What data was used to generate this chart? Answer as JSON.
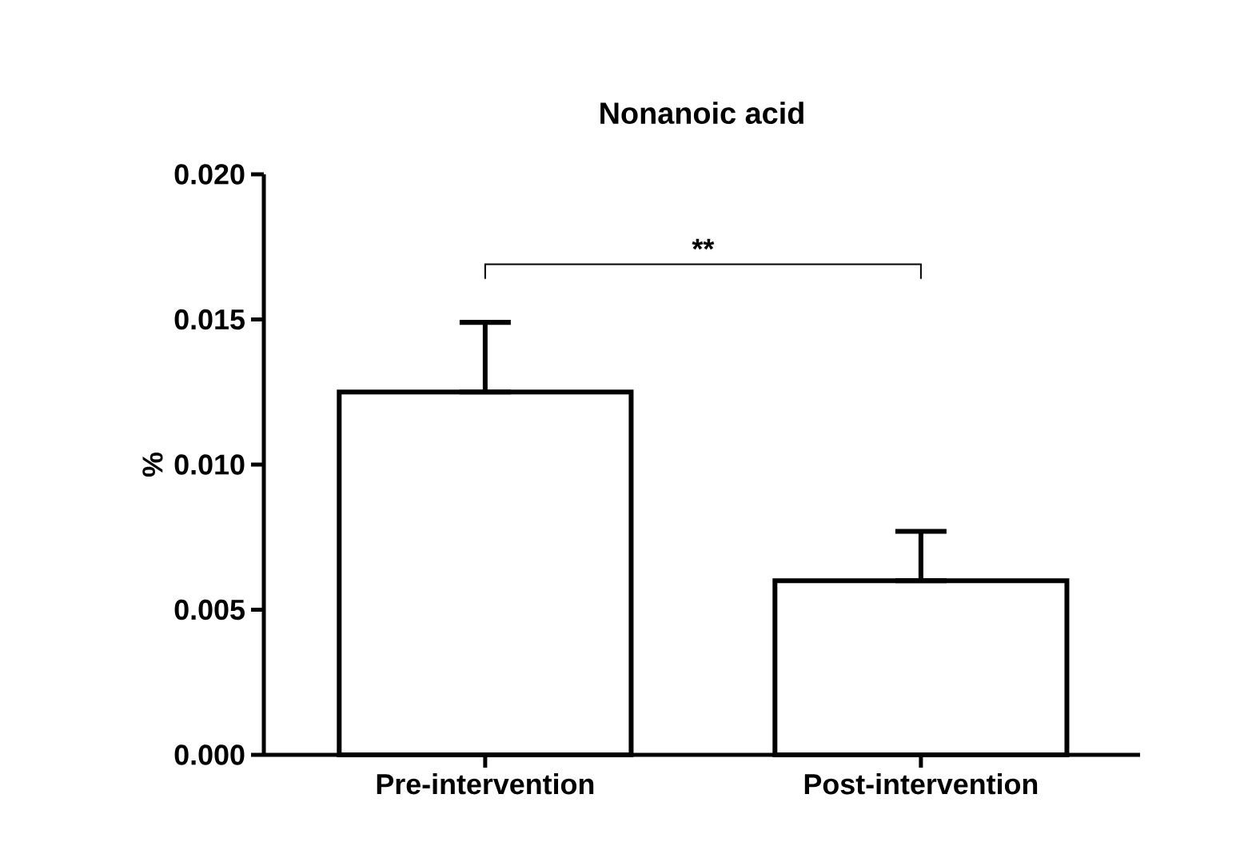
{
  "chart_data": {
    "type": "bar",
    "title": "Nonanoic acid",
    "ylabel": "%",
    "categories": [
      "Pre-intervention",
      "Post-intervention"
    ],
    "values": [
      0.0125,
      0.006
    ],
    "errors": [
      [
        0.0125,
        0.0149
      ],
      [
        0.006,
        0.0077
      ]
    ],
    "color": "#ffffff",
    "ylim": [
      0,
      0.02
    ],
    "yticks": [
      {
        "value": 0,
        "label": "0.000"
      },
      {
        "value": 0.005,
        "label": "0.005"
      },
      {
        "value": 0.01,
        "label": "0.010"
      },
      {
        "value": 0.015,
        "label": "0.015"
      },
      {
        "value": 0.02,
        "label": "0.020"
      }
    ],
    "annotations": [
      "**"
    ]
  }
}
